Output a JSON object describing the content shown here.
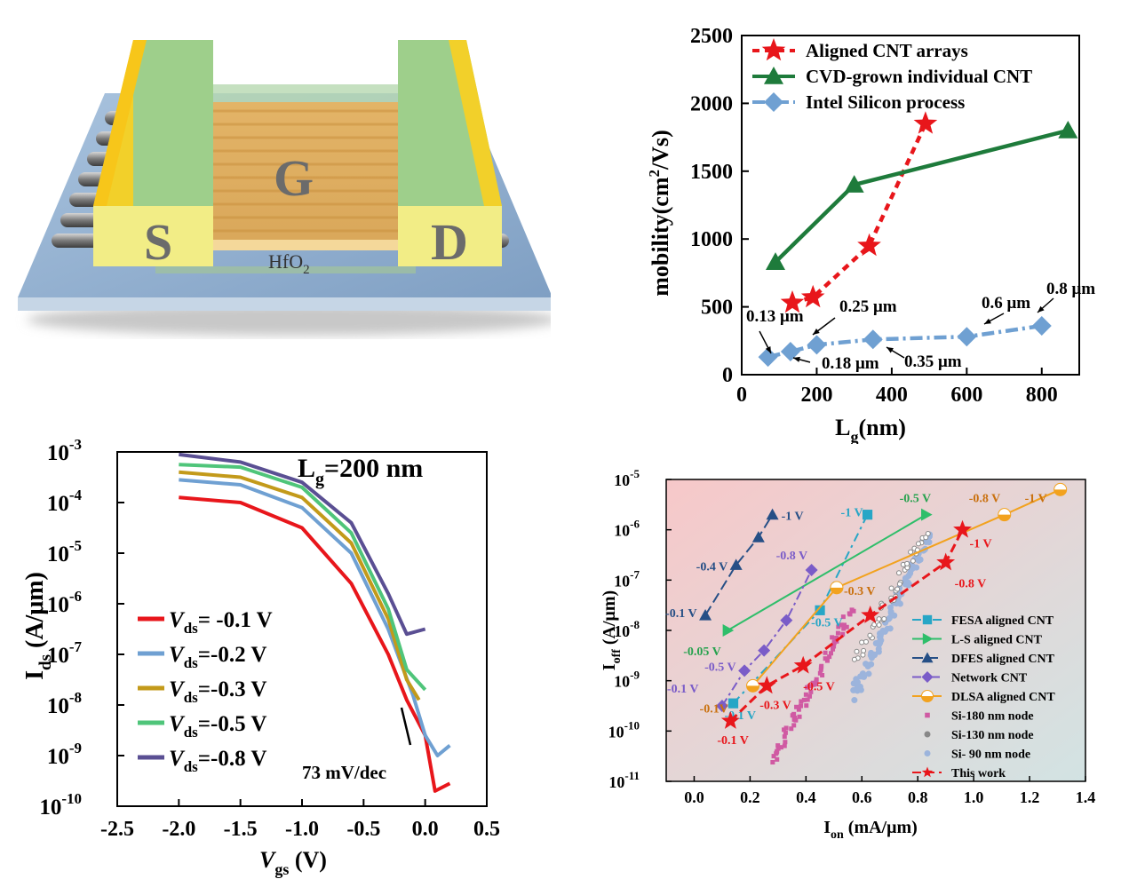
{
  "device": {
    "gate_label": "G",
    "source_label": "S",
    "drain_label": "D",
    "oxide_label_main": "HfO",
    "oxide_label_sub": "2"
  },
  "colors": {
    "red": "#e8161b",
    "green": "#1e7b3b",
    "blue": "#6fa0d2",
    "tan": "#c39a1a",
    "lightgreen": "#4fc57a",
    "purple": "#5a4f93",
    "orange": "#f2a21e",
    "dfes": "#264f86",
    "fesa": "#27a6c6",
    "ls": "#2fbe6a",
    "network": "#7a5cc8",
    "si180": "#d05aa3",
    "si130": "#888888",
    "si90": "#9cb4dc"
  },
  "chart_data": [
    {
      "type": "line",
      "xlabel_main": "L",
      "xlabel_sub": "g",
      "xlabel_suffix": "(nm)",
      "ylabel_main": "mobility(cm",
      "ylabel_sup": "2",
      "ylabel_suffix": "/Vs)",
      "xlim": [
        0,
        900
      ],
      "ylim": [
        0,
        2500
      ],
      "xticks": [
        0,
        200,
        400,
        600,
        800
      ],
      "yticks": [
        0,
        500,
        1000,
        1500,
        2000,
        2500
      ],
      "legend_position": "top-left",
      "series": [
        {
          "name": "Aligned CNT arrays",
          "marker": "star",
          "x": [
            135,
            190,
            340,
            490
          ],
          "y": [
            530,
            570,
            950,
            1850
          ]
        },
        {
          "name": "CVD-grown individual CNT",
          "marker": "triangle",
          "x": [
            90,
            300,
            870
          ],
          "y": [
            830,
            1400,
            1800
          ]
        },
        {
          "name": "Intel Silicon process",
          "marker": "diamond",
          "x": [
            70,
            130,
            200,
            350,
            600,
            800
          ],
          "y": [
            130,
            170,
            220,
            260,
            280,
            360
          ]
        }
      ],
      "annotations": [
        "0.13 μm",
        "0.18 μm",
        "0.25 μm",
        "0.35 μm",
        "0.6 μm",
        "0.8 μm"
      ]
    },
    {
      "type": "line",
      "title": "L",
      "title_sub": "g",
      "title_suffix": "=200 nm",
      "xlabel_main": "V",
      "xlabel_sub": "gs",
      "xlabel_suffix": " (V)",
      "ylabel_main": "I",
      "ylabel_sub": "ds",
      "ylabel_suffix": " (A/μm)",
      "xlim": [
        -2.5,
        0.5
      ],
      "ylim_log10": [
        -10,
        -3
      ],
      "xticks": [
        "-2.5",
        "-2.0",
        "-1.5",
        "-1.0",
        "-0.5",
        "0.0",
        "0.5"
      ],
      "yticks": [
        "10",
        "10",
        "10",
        "10",
        "10",
        "10",
        "10",
        "10"
      ],
      "ytick_exponents": [
        "-10",
        "-9",
        "-8",
        "-7",
        "-6",
        "-5",
        "-4",
        "-3"
      ],
      "annotation": "73 mV/dec",
      "legend_position": "bottom-left",
      "series": [
        {
          "name_main": "V",
          "name_sub": "ds",
          "name_suffix": "= -0.1 V",
          "x": [
            -2.0,
            -1.5,
            -1.0,
            -0.6,
            -0.3,
            -0.15,
            0.0,
            0.08,
            0.2
          ],
          "log_y": [
            -3.9,
            -4.0,
            -4.5,
            -5.6,
            -7.0,
            -7.9,
            -8.6,
            -9.7,
            -9.55
          ]
        },
        {
          "name_main": "V",
          "name_sub": "ds",
          "name_suffix": "=-0.2 V",
          "x": [
            -2.0,
            -1.5,
            -1.0,
            -0.6,
            -0.3,
            -0.1,
            0.0,
            0.1,
            0.2
          ],
          "log_y": [
            -3.55,
            -3.65,
            -4.1,
            -5.0,
            -6.5,
            -7.8,
            -8.6,
            -9.0,
            -8.8
          ]
        },
        {
          "name_main": "V",
          "name_sub": "ds",
          "name_suffix": "=-0.3 V",
          "x": [
            -2.0,
            -1.5,
            -1.0,
            -0.6,
            -0.3,
            -0.15,
            -0.05
          ],
          "log_y": [
            -3.4,
            -3.5,
            -3.9,
            -4.8,
            -6.3,
            -7.5,
            -7.9
          ]
        },
        {
          "name_main": "V",
          "name_sub": "ds",
          "name_suffix": "=-0.5 V",
          "x": [
            -2.0,
            -1.5,
            -1.0,
            -0.6,
            -0.3,
            -0.15,
            0.0
          ],
          "log_y": [
            -3.25,
            -3.3,
            -3.7,
            -4.6,
            -6.1,
            -7.3,
            -7.7
          ]
        },
        {
          "name_main": "V",
          "name_sub": "ds",
          "name_suffix": "=-0.8 V",
          "x": [
            -2.0,
            -1.5,
            -1.0,
            -0.6,
            -0.3,
            -0.15,
            0.0
          ],
          "log_y": [
            -3.05,
            -3.2,
            -3.6,
            -4.4,
            -5.8,
            -6.6,
            -6.5
          ]
        }
      ]
    },
    {
      "type": "scatter",
      "xlabel_main": "I",
      "xlabel_sub": "on",
      "xlabel_suffix": " (mA/μm)",
      "ylabel_main": "I",
      "ylabel_sub": "off",
      "ylabel_suffix": " (A/μm)",
      "xlim": [
        -0.1,
        1.4
      ],
      "ylim_log10": [
        -11,
        -5
      ],
      "xticks": [
        "0.0",
        "0.2",
        "0.4",
        "0.6",
        "0.8",
        "1.0",
        "1.2",
        "1.4"
      ],
      "yticks": [
        "10",
        "10",
        "10",
        "10",
        "10",
        "10",
        "10"
      ],
      "ytick_exponents": [
        "-11",
        "-10",
        "-9",
        "-8",
        "-7",
        "-6",
        "-5"
      ],
      "legend_position": "bottom-right",
      "series": [
        {
          "name": "FESA aligned CNT",
          "marker": "square",
          "x": [
            0.14,
            0.45,
            0.62
          ],
          "log_y": [
            -9.45,
            -7.6,
            -5.7
          ],
          "labels": [
            "-0.1 V",
            "-0.5 V",
            "-1 V"
          ]
        },
        {
          "name": "L-S aligned CNT",
          "marker": "triangle-right",
          "x": [
            0.12,
            0.83
          ],
          "log_y": [
            -8.0,
            -5.7
          ],
          "labels": [
            "-0.05 V",
            "-0.5 V"
          ]
        },
        {
          "name": "DFES aligned CNT",
          "marker": "triangle",
          "x": [
            0.04,
            0.15,
            0.23,
            0.28
          ],
          "log_y": [
            -7.7,
            -6.7,
            -6.15,
            -5.7
          ],
          "labels": [
            "-0.1 V",
            "-0.4 V",
            "-1 V"
          ]
        },
        {
          "name": "Network CNT",
          "marker": "diamond",
          "x": [
            0.1,
            0.18,
            0.25,
            0.33,
            0.42
          ],
          "log_y": [
            -9.5,
            -8.8,
            -8.4,
            -7.8,
            -6.8
          ],
          "labels": [
            "-0.1 V",
            "-0.5 V",
            "-0.8 V"
          ]
        },
        {
          "name": "DLSA aligned CNT",
          "marker": "half-circle",
          "x": [
            0.21,
            0.51,
            1.11,
            1.31
          ],
          "log_y": [
            -9.1,
            -7.15,
            -5.7,
            -5.2
          ],
          "labels": [
            "-0.1V",
            "-0.3 V",
            "-0.8 V",
            "-1 V"
          ]
        },
        {
          "name": "Si-180 nm node",
          "marker": "small-square",
          "range_x": [
            0.28,
            0.56
          ],
          "range_log_y": [
            -10.6,
            -7.6
          ]
        },
        {
          "name": "Si-130 nm node",
          "marker": "small-circle",
          "range_x": [
            0.58,
            0.83
          ],
          "range_log_y": [
            -8.6,
            -6.05
          ]
        },
        {
          "name": "Si- 90 nm node",
          "marker": "dot",
          "range_x": [
            0.57,
            0.84
          ],
          "range_log_y": [
            -9.3,
            -6.1
          ]
        },
        {
          "name": "This work",
          "marker": "star",
          "x": [
            0.13,
            0.26,
            0.39,
            0.63,
            0.9,
            0.96
          ],
          "log_y": [
            -9.8,
            -9.1,
            -8.7,
            -7.7,
            -6.65,
            -6.0
          ],
          "labels": [
            "-0.1 V",
            "-0.3 V",
            "-0.5 V",
            "-0.8 V",
            "-1 V"
          ]
        }
      ]
    }
  ]
}
